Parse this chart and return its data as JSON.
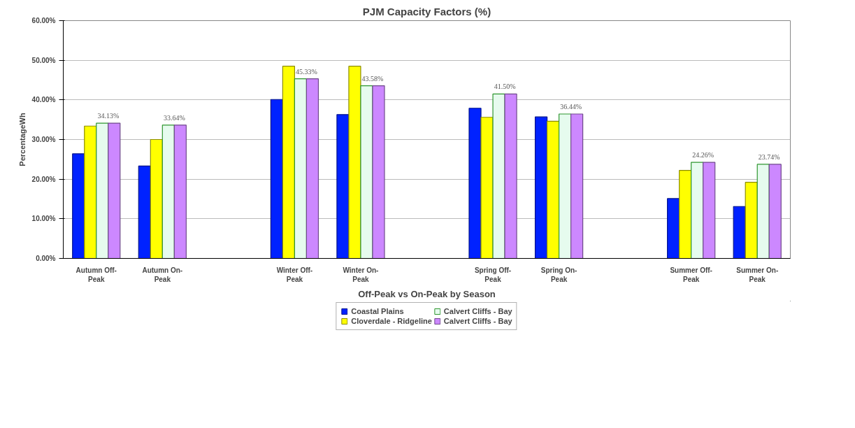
{
  "chart_data": {
    "type": "bar",
    "title": "PJM Capacity Factors (%)",
    "xlabel": "Off-Peak vs On-Peak by Season",
    "ylabel": "PercentageWh",
    "categories": [
      "Autumn Off-Peak",
      "Autumn On-Peak",
      null,
      "Winter Off-Peak",
      "Winter On-Peak",
      null,
      "Spring Off-Peak",
      "Spring On-Peak",
      null,
      "Summer Off-Peak",
      "Summer On-Peak"
    ],
    "series": [
      {
        "name": "Coastal Plains",
        "color": "#0022ff",
        "values": [
          26.4,
          23.3,
          null,
          40.1,
          36.3,
          null,
          37.9,
          35.7,
          null,
          15.1,
          13.1
        ]
      },
      {
        "name": "Cloverdale - Ridgeline",
        "color": "#ffff00",
        "values": [
          33.4,
          30.0,
          null,
          48.5,
          48.5,
          null,
          35.6,
          34.6,
          null,
          22.2,
          19.2
        ]
      },
      {
        "name": "Calvert Cliffs - Bay",
        "color": "#e6fbee",
        "values": [
          34.13,
          33.64,
          null,
          45.33,
          43.58,
          null,
          41.5,
          36.44,
          null,
          24.26,
          23.74
        ],
        "value_labels": [
          "34.13%",
          "33.64%",
          null,
          "45.33%",
          "43.58%",
          null,
          "41.50%",
          "36.44%",
          null,
          "24.26%",
          "23.74%"
        ]
      },
      {
        "name": "Calvert Cliffs - Bay",
        "color": "#cc88ff",
        "values": [
          34.13,
          33.64,
          null,
          45.33,
          43.58,
          null,
          41.5,
          36.44,
          null,
          24.26,
          23.74
        ]
      }
    ],
    "ylim": [
      0,
      60
    ],
    "yticks": [
      {
        "value": 0,
        "label": "0.00%"
      },
      {
        "value": 10,
        "label": "10.00%"
      },
      {
        "value": 20,
        "label": "20.00%"
      },
      {
        "value": 30,
        "label": "30.00%"
      },
      {
        "value": 40,
        "label": "40.00%"
      },
      {
        "value": 50,
        "label": "50.00%"
      },
      {
        "value": 60,
        "label": "60.00%"
      }
    ],
    "grid": "y",
    "legend": "bottom"
  }
}
